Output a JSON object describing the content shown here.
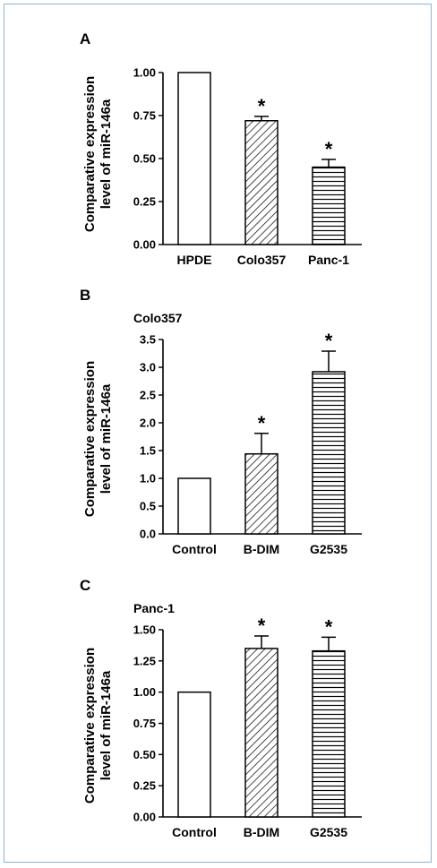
{
  "colors": {
    "frame_border": "#8fb3d3",
    "bar_stroke": "#000000",
    "bar_fill": "#ffffff"
  },
  "chart_data": [
    {
      "panel": "A",
      "title": "",
      "type": "bar",
      "ylabel_line1": "Comparative expression",
      "ylabel_line2": "level of miR-146a",
      "ylim": [
        0,
        1.0
      ],
      "yticks": [
        "0.00",
        "0.25",
        "0.50",
        "0.75",
        "1.00"
      ],
      "categories": [
        "HPDE",
        "Colo357",
        "Panc-1"
      ],
      "values": [
        1.0,
        0.72,
        0.45
      ],
      "errors": [
        0,
        0.025,
        0.045
      ],
      "patterns": [
        "none",
        "diagonal",
        "horizontal"
      ],
      "significance": [
        "",
        "*",
        "*"
      ],
      "grid": false
    },
    {
      "panel": "B",
      "title": "Colo357",
      "type": "bar",
      "ylabel_line1": "Comparative expression",
      "ylabel_line2": "level of miR-146a",
      "ylim": [
        0,
        3.5
      ],
      "yticks": [
        "0.0",
        "0.5",
        "1.0",
        "1.5",
        "2.0",
        "2.5",
        "3.0",
        "3.5"
      ],
      "categories": [
        "Control",
        "B-DIM",
        "G2535"
      ],
      "values": [
        1.0,
        1.44,
        2.92
      ],
      "errors": [
        0,
        0.37,
        0.37
      ],
      "patterns": [
        "none",
        "diagonal",
        "horizontal"
      ],
      "significance": [
        "",
        "*",
        "*"
      ],
      "grid": false
    },
    {
      "panel": "C",
      "title": "Panc-1",
      "type": "bar",
      "ylabel_line1": "Comparative expression",
      "ylabel_line2": "level of miR-146a",
      "ylim": [
        0,
        1.5
      ],
      "yticks": [
        "0.00",
        "0.25",
        "0.50",
        "0.75",
        "1.00",
        "1.25",
        "1.50"
      ],
      "categories": [
        "Control",
        "B-DIM",
        "G2535"
      ],
      "values": [
        1.0,
        1.35,
        1.33
      ],
      "errors": [
        0,
        0.1,
        0.11
      ],
      "patterns": [
        "none",
        "diagonal",
        "horizontal"
      ],
      "significance": [
        "",
        "*",
        "*"
      ],
      "grid": false
    }
  ]
}
